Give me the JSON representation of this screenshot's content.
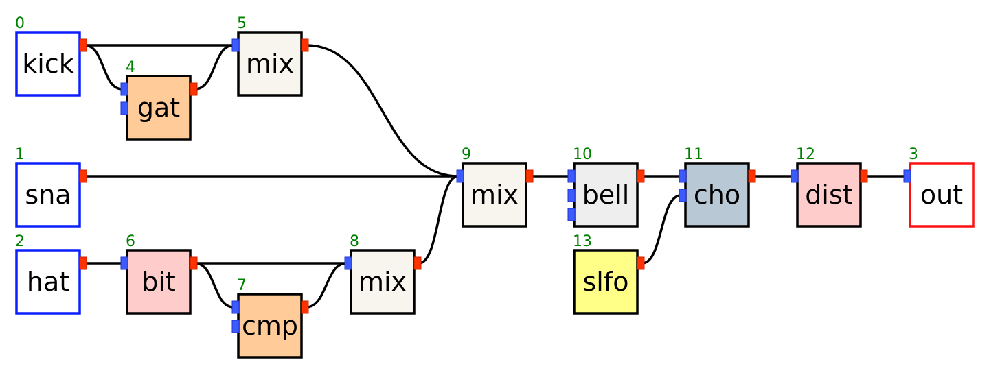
{
  "colors": {
    "input_border": "#0a1eff",
    "output_border": "#ff1010",
    "module_border": "#000000",
    "id_text": "#008000",
    "port_in": "#3b5bff",
    "port_out": "#ff3300"
  },
  "nodes": [
    {
      "id": "0",
      "label": "kick",
      "kind": "input",
      "fill": "#ffffff"
    },
    {
      "id": "1",
      "label": "sna",
      "kind": "input",
      "fill": "#ffffff"
    },
    {
      "id": "2",
      "label": "hat",
      "kind": "input",
      "fill": "#ffffff"
    },
    {
      "id": "3",
      "label": "out",
      "kind": "output",
      "fill": "#ffffff"
    },
    {
      "id": "4",
      "label": "gat",
      "kind": "module",
      "fill": "#ffcc99"
    },
    {
      "id": "5",
      "label": "mix",
      "kind": "module",
      "fill": "#f8f5ee"
    },
    {
      "id": "6",
      "label": "bit",
      "kind": "module",
      "fill": "#ffcccc"
    },
    {
      "id": "7",
      "label": "cmp",
      "kind": "module",
      "fill": "#ffcc99"
    },
    {
      "id": "8",
      "label": "mix",
      "kind": "module",
      "fill": "#f8f5ee"
    },
    {
      "id": "9",
      "label": "mix",
      "kind": "module",
      "fill": "#f8f5ee"
    },
    {
      "id": "10",
      "label": "bell",
      "kind": "module",
      "fill": "#eeeeee"
    },
    {
      "id": "11",
      "label": "cho",
      "kind": "module",
      "fill": "#b8c8d4"
    },
    {
      "id": "12",
      "label": "dist",
      "kind": "module",
      "fill": "#ffcccc"
    },
    {
      "id": "13",
      "label": "slfo",
      "kind": "module",
      "fill": "#ffff88"
    }
  ],
  "connections": [
    {
      "from": "0",
      "to": "5",
      "to_port": 0
    },
    {
      "from": "0",
      "to": "4",
      "to_port": 0
    },
    {
      "from": "4",
      "to": "5",
      "to_port": 0
    },
    {
      "from": "5",
      "to": "9",
      "to_port": 0
    },
    {
      "from": "1",
      "to": "9",
      "to_port": 0
    },
    {
      "from": "2",
      "to": "6",
      "to_port": 0
    },
    {
      "from": "6",
      "to": "8",
      "to_port": 0
    },
    {
      "from": "6",
      "to": "7",
      "to_port": 0
    },
    {
      "from": "7",
      "to": "8",
      "to_port": 0
    },
    {
      "from": "8",
      "to": "9",
      "to_port": 0
    },
    {
      "from": "9",
      "to": "10",
      "to_port": 0
    },
    {
      "from": "10",
      "to": "11",
      "to_port": 0
    },
    {
      "from": "13",
      "to": "11",
      "to_port": 1
    },
    {
      "from": "11",
      "to": "12",
      "to_port": 0
    },
    {
      "from": "12",
      "to": "3",
      "to_port": 0
    }
  ]
}
